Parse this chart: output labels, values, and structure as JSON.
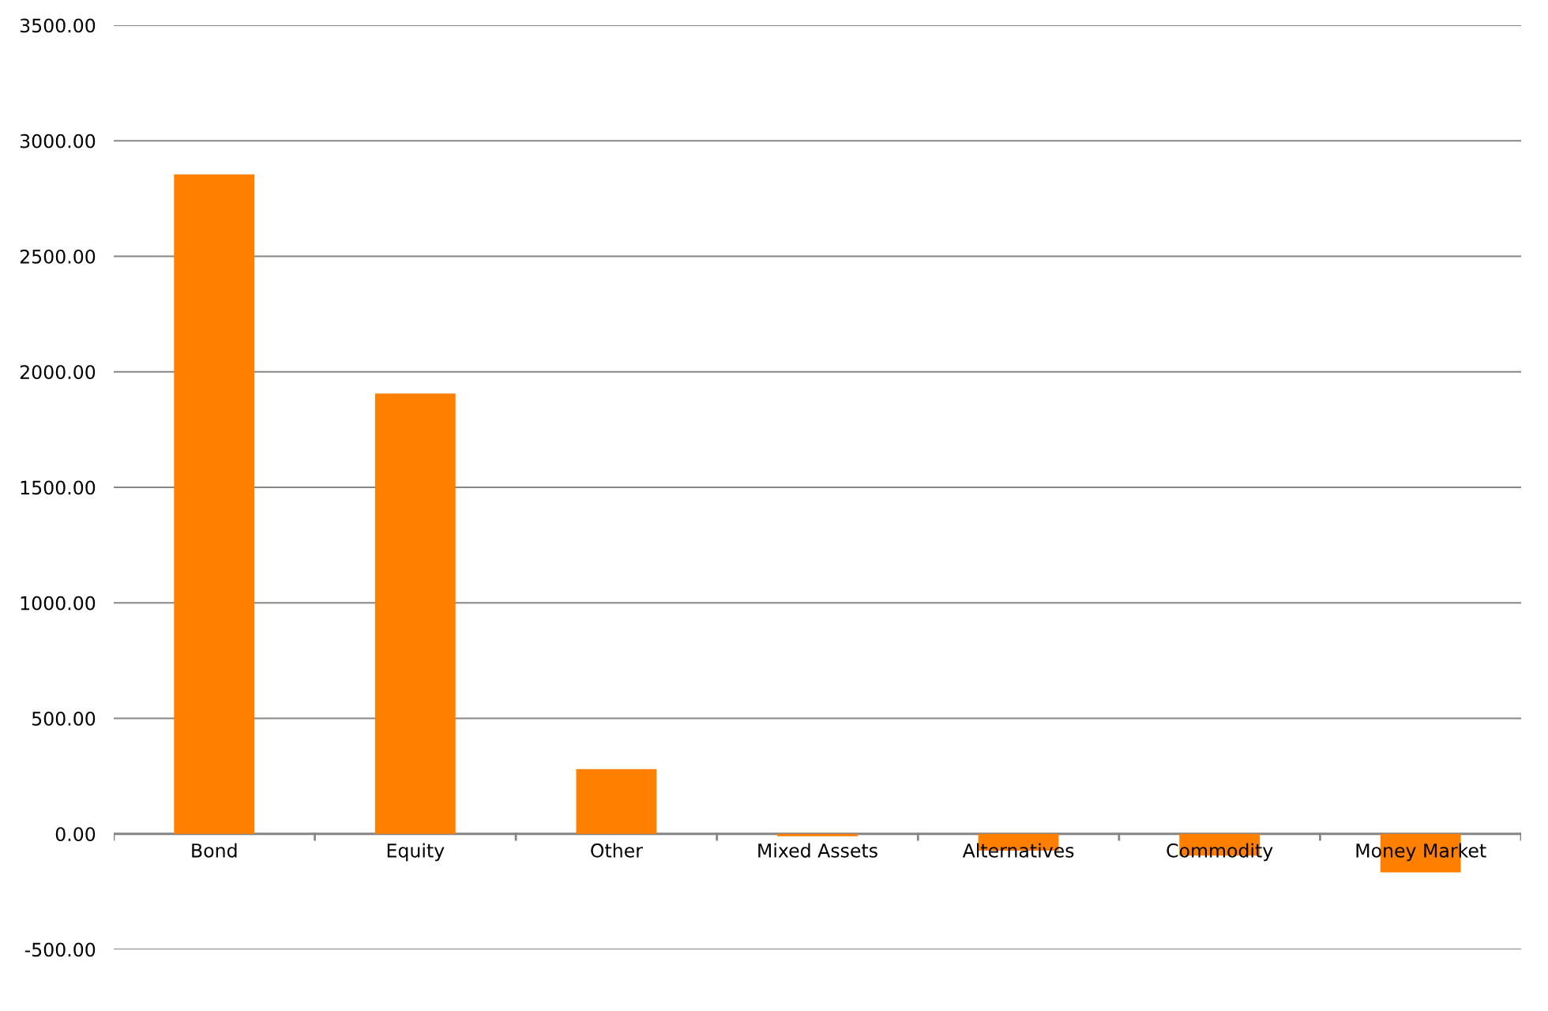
{
  "chart_data": {
    "type": "bar",
    "categories": [
      "Bond",
      "Equity",
      "Other",
      "Mixed Assets",
      "Alternatives",
      "Commodity",
      "Money Market"
    ],
    "values": [
      2855,
      1906,
      280,
      -10,
      -73,
      -94,
      -167
    ],
    "color": "#ff8000",
    "ylim": [
      -500,
      3500
    ],
    "yticks": [
      {
        "value": -500,
        "label": "-500.00"
      },
      {
        "value": 0,
        "label": "0.00"
      },
      {
        "value": 500,
        "label": "500.00"
      },
      {
        "value": 1000,
        "label": "1000.00"
      },
      {
        "value": 1500,
        "label": "1500.00"
      },
      {
        "value": 2000,
        "label": "2000.00"
      },
      {
        "value": 2500,
        "label": "2500.00"
      },
      {
        "value": 3000,
        "label": "3000.00"
      },
      {
        "value": 3500,
        "label": "3500.00"
      }
    ],
    "grid": "y"
  }
}
